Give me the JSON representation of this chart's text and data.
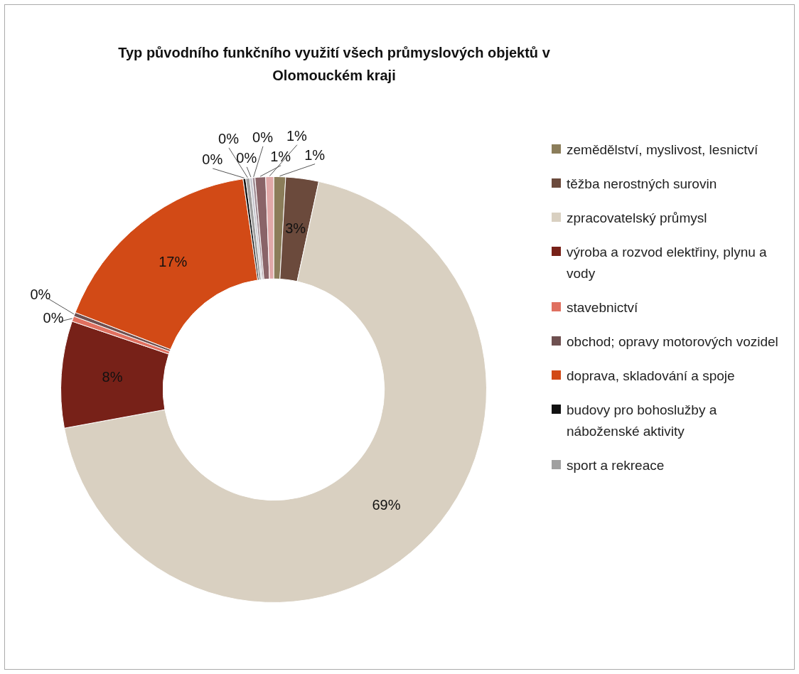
{
  "chart_data": {
    "type": "donut",
    "title": "Typ původního funkčního využití všech průmyslových objektů v Olomouckém kraji",
    "categories": [
      "zemědělství, myslivost, lesnictví",
      "těžba nerostných surovin",
      "zpracovatelský průmysl",
      "výroba a rozvod elektřiny, plynu a vody",
      "stavebnictví",
      "obchod; opravy motorových vozidel",
      "doprava, skladování a spoje",
      "budovy pro bohoslužby a náboženské aktivity",
      "sport a rekreace",
      null,
      null,
      null,
      null
    ],
    "values": [
      0.9,
      2.5,
      68.7,
      8.1,
      0.4,
      0.3,
      16.8,
      0.2,
      0.3,
      0.2,
      0.2,
      0.8,
      0.6
    ],
    "value_labels": [
      "1%",
      "3%",
      "69%",
      "8%",
      "0%",
      "0%",
      "17%",
      "0%",
      "0%",
      "0%",
      "0%",
      "1%",
      "1%"
    ],
    "colors": [
      "#8b7d5a",
      "#6b4a3c",
      "#d9d0c1",
      "#772118",
      "#e07060",
      "#6e5050",
      "#d24a16",
      "#111111",
      "#a0a0a0",
      "#c4c4cc",
      "#a08c94",
      "#8a6468",
      "#e0a8a8"
    ],
    "legend": "right"
  }
}
